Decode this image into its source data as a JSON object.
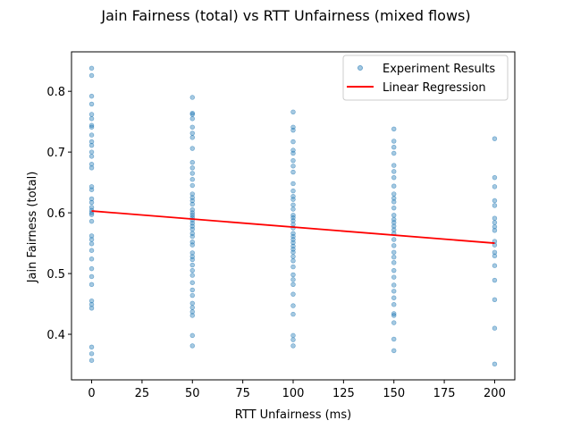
{
  "chart_data": {
    "type": "scatter",
    "title": "Jain Fairness (total) vs RTT Unfairness (mixed flows)",
    "xlabel": "RTT Unfairness (ms)",
    "ylabel": "Jain Fairness (total)",
    "xlim": [
      -10,
      210
    ],
    "ylim": [
      0.325,
      0.865
    ],
    "xticks": [
      0,
      25,
      50,
      75,
      100,
      125,
      150,
      175,
      200
    ],
    "yticks": [
      0.4,
      0.5,
      0.6,
      0.7,
      0.8
    ],
    "grid": false,
    "legend_position": "top-right",
    "colors": {
      "points": "#1f77b4",
      "regression": "#ff0000"
    },
    "series": [
      {
        "name": "Experiment Results",
        "kind": "scatter",
        "points": [
          [
            0,
            0.838
          ],
          [
            0,
            0.826
          ],
          [
            0,
            0.792
          ],
          [
            0,
            0.779
          ],
          [
            0,
            0.762
          ],
          [
            0,
            0.755
          ],
          [
            0,
            0.744
          ],
          [
            0,
            0.741
          ],
          [
            0,
            0.728
          ],
          [
            0,
            0.717
          ],
          [
            0,
            0.711
          ],
          [
            0,
            0.7
          ],
          [
            0,
            0.693
          ],
          [
            0,
            0.68
          ],
          [
            0,
            0.674
          ],
          [
            0,
            0.643
          ],
          [
            0,
            0.638
          ],
          [
            0,
            0.623
          ],
          [
            0,
            0.617
          ],
          [
            0,
            0.609
          ],
          [
            0,
            0.604
          ],
          [
            0,
            0.6
          ],
          [
            0,
            0.597
          ],
          [
            0,
            0.586
          ],
          [
            0,
            0.562
          ],
          [
            0,
            0.556
          ],
          [
            0,
            0.549
          ],
          [
            0,
            0.538
          ],
          [
            0,
            0.524
          ],
          [
            0,
            0.508
          ],
          [
            0,
            0.495
          ],
          [
            0,
            0.482
          ],
          [
            0,
            0.455
          ],
          [
            0,
            0.449
          ],
          [
            0,
            0.443
          ],
          [
            0,
            0.379
          ],
          [
            0,
            0.368
          ],
          [
            0,
            0.357
          ],
          [
            50,
            0.79
          ],
          [
            50,
            0.764
          ],
          [
            50,
            0.762
          ],
          [
            50,
            0.755
          ],
          [
            50,
            0.741
          ],
          [
            50,
            0.731
          ],
          [
            50,
            0.724
          ],
          [
            50,
            0.706
          ],
          [
            50,
            0.683
          ],
          [
            50,
            0.674
          ],
          [
            50,
            0.665
          ],
          [
            50,
            0.655
          ],
          [
            50,
            0.645
          ],
          [
            50,
            0.631
          ],
          [
            50,
            0.625
          ],
          [
            50,
            0.62
          ],
          [
            50,
            0.614
          ],
          [
            50,
            0.605
          ],
          [
            50,
            0.6
          ],
          [
            50,
            0.596
          ],
          [
            50,
            0.592
          ],
          [
            50,
            0.588
          ],
          [
            50,
            0.583
          ],
          [
            50,
            0.578
          ],
          [
            50,
            0.573
          ],
          [
            50,
            0.566
          ],
          [
            50,
            0.561
          ],
          [
            50,
            0.552
          ],
          [
            50,
            0.547
          ],
          [
            50,
            0.534
          ],
          [
            50,
            0.528
          ],
          [
            50,
            0.523
          ],
          [
            50,
            0.514
          ],
          [
            50,
            0.505
          ],
          [
            50,
            0.497
          ],
          [
            50,
            0.485
          ],
          [
            50,
            0.473
          ],
          [
            50,
            0.464
          ],
          [
            50,
            0.451
          ],
          [
            50,
            0.444
          ],
          [
            50,
            0.437
          ],
          [
            50,
            0.431
          ],
          [
            50,
            0.398
          ],
          [
            50,
            0.381
          ],
          [
            100,
            0.766
          ],
          [
            100,
            0.741
          ],
          [
            100,
            0.736
          ],
          [
            100,
            0.717
          ],
          [
            100,
            0.703
          ],
          [
            100,
            0.698
          ],
          [
            100,
            0.686
          ],
          [
            100,
            0.677
          ],
          [
            100,
            0.667
          ],
          [
            100,
            0.648
          ],
          [
            100,
            0.636
          ],
          [
            100,
            0.627
          ],
          [
            100,
            0.622
          ],
          [
            100,
            0.613
          ],
          [
            100,
            0.606
          ],
          [
            100,
            0.596
          ],
          [
            100,
            0.592
          ],
          [
            100,
            0.587
          ],
          [
            100,
            0.581
          ],
          [
            100,
            0.575
          ],
          [
            100,
            0.566
          ],
          [
            100,
            0.561
          ],
          [
            100,
            0.556
          ],
          [
            100,
            0.551
          ],
          [
            100,
            0.545
          ],
          [
            100,
            0.54
          ],
          [
            100,
            0.535
          ],
          [
            100,
            0.528
          ],
          [
            100,
            0.521
          ],
          [
            100,
            0.511
          ],
          [
            100,
            0.498
          ],
          [
            100,
            0.49
          ],
          [
            100,
            0.482
          ],
          [
            100,
            0.466
          ],
          [
            100,
            0.447
          ],
          [
            100,
            0.433
          ],
          [
            100,
            0.398
          ],
          [
            100,
            0.391
          ],
          [
            100,
            0.381
          ],
          [
            150,
            0.738
          ],
          [
            150,
            0.718
          ],
          [
            150,
            0.708
          ],
          [
            150,
            0.698
          ],
          [
            150,
            0.678
          ],
          [
            150,
            0.668
          ],
          [
            150,
            0.658
          ],
          [
            150,
            0.644
          ],
          [
            150,
            0.631
          ],
          [
            150,
            0.624
          ],
          [
            150,
            0.618
          ],
          [
            150,
            0.608
          ],
          [
            150,
            0.596
          ],
          [
            150,
            0.589
          ],
          [
            150,
            0.584
          ],
          [
            150,
            0.578
          ],
          [
            150,
            0.572
          ],
          [
            150,
            0.566
          ],
          [
            150,
            0.556
          ],
          [
            150,
            0.546
          ],
          [
            150,
            0.535
          ],
          [
            150,
            0.527
          ],
          [
            150,
            0.518
          ],
          [
            150,
            0.505
          ],
          [
            150,
            0.494
          ],
          [
            150,
            0.481
          ],
          [
            150,
            0.471
          ],
          [
            150,
            0.46
          ],
          [
            150,
            0.449
          ],
          [
            150,
            0.434
          ],
          [
            150,
            0.431
          ],
          [
            150,
            0.419
          ],
          [
            150,
            0.392
          ],
          [
            150,
            0.373
          ],
          [
            200,
            0.722
          ],
          [
            200,
            0.658
          ],
          [
            200,
            0.643
          ],
          [
            200,
            0.62
          ],
          [
            200,
            0.612
          ],
          [
            200,
            0.591
          ],
          [
            200,
            0.584
          ],
          [
            200,
            0.577
          ],
          [
            200,
            0.571
          ],
          [
            200,
            0.553
          ],
          [
            200,
            0.547
          ],
          [
            200,
            0.535
          ],
          [
            200,
            0.529
          ],
          [
            200,
            0.513
          ],
          [
            200,
            0.489
          ],
          [
            200,
            0.457
          ],
          [
            200,
            0.41
          ],
          [
            200,
            0.351
          ]
        ]
      },
      {
        "name": "Linear Regression",
        "kind": "line",
        "points": [
          [
            0,
            0.603
          ],
          [
            200,
            0.55
          ]
        ]
      }
    ]
  }
}
